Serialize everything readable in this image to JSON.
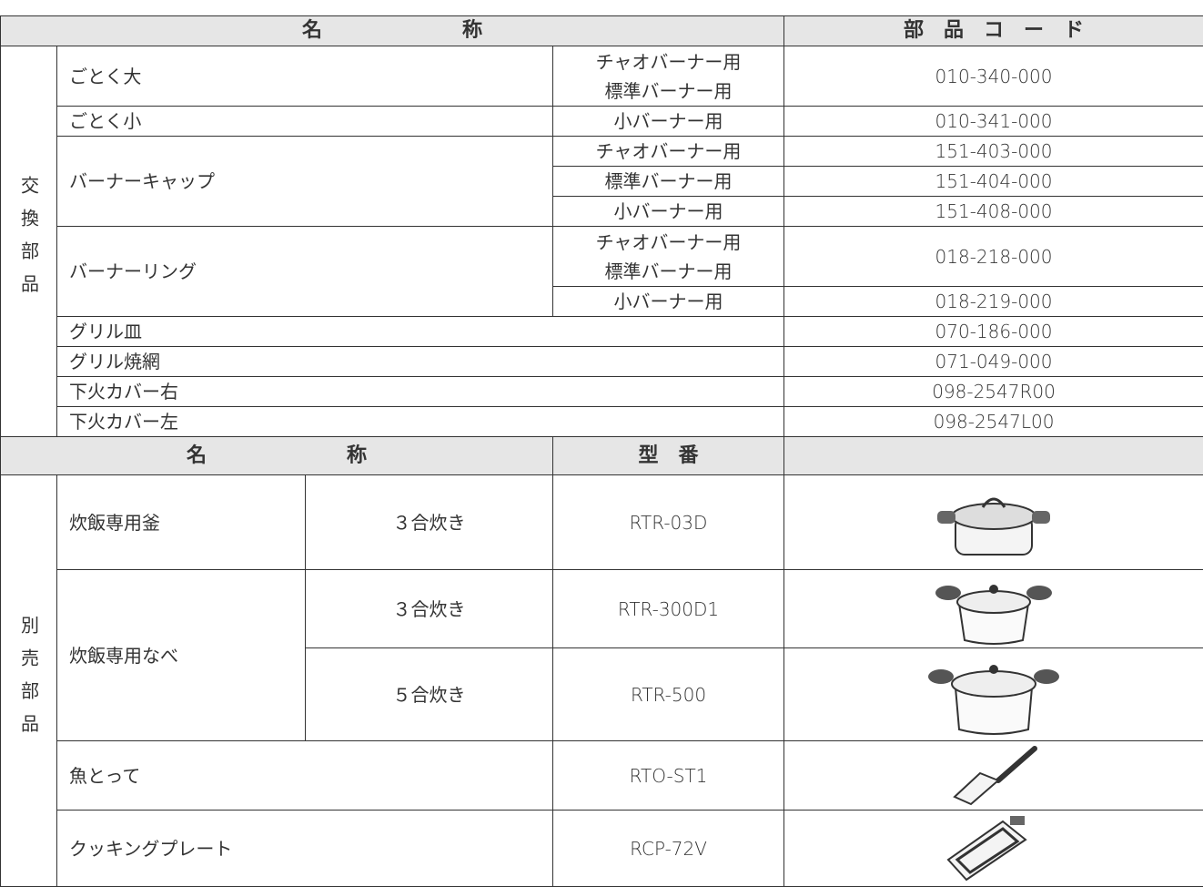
{
  "table": {
    "header": {
      "name": "名　　　　　　　称",
      "code": "部　品　コ　ー　ド"
    },
    "replacement_parts": {
      "label": "交換部品",
      "items": [
        {
          "name": "ごとく大",
          "variants": [
            {
              "use": [
                "チャオバーナー用",
                "標準バーナー用"
              ],
              "code": "010-340-000"
            }
          ]
        },
        {
          "name": "ごとく小",
          "variants": [
            {
              "use": [
                "小バーナー用"
              ],
              "code": "010-341-000"
            }
          ]
        },
        {
          "name": "バーナーキャップ",
          "variants": [
            {
              "use": [
                "チャオバーナー用"
              ],
              "code": "151-403-000"
            },
            {
              "use": [
                "標準バーナー用"
              ],
              "code": "151-404-000"
            },
            {
              "use": [
                "小バーナー用"
              ],
              "code": "151-408-000"
            }
          ]
        },
        {
          "name": "バーナーリング",
          "variants": [
            {
              "use": [
                "チャオバーナー用",
                "標準バーナー用"
              ],
              "code": "018-218-000"
            },
            {
              "use": [
                "小バーナー用"
              ],
              "code": "018-219-000"
            }
          ]
        },
        {
          "name": "グリル皿",
          "code": "070-186-000"
        },
        {
          "name": "グリル焼網",
          "code": "071-049-000"
        },
        {
          "name": "下火カバー右",
          "code": "098-2547R00"
        },
        {
          "name": "下火カバー左",
          "code": "098-2547L00"
        }
      ]
    },
    "optional_header": {
      "name": "名　　　　　　　称",
      "model": "型　番"
    },
    "optional_parts": {
      "label": "別売部品",
      "items": [
        {
          "name": "炊飯専用釜",
          "variants": [
            {
              "capacity": "３合炊き",
              "model": "RTR-03D"
            }
          ]
        },
        {
          "name": "炊飯専用なべ",
          "variants": [
            {
              "capacity": "３合炊き",
              "model": "RTR-300D1"
            },
            {
              "capacity": "５合炊き",
              "model": "RTR-500"
            }
          ]
        },
        {
          "name": "魚とって",
          "model": "RTO-ST1"
        },
        {
          "name": "クッキングプレート",
          "model": "RCP-72V"
        }
      ]
    }
  }
}
